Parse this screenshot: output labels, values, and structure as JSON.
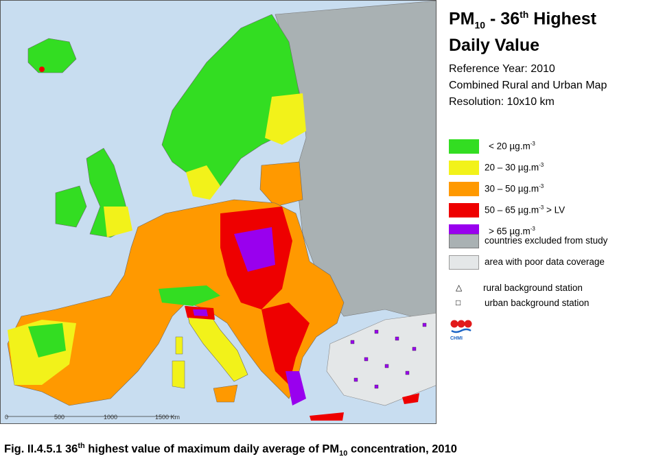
{
  "title": {
    "line1_prefix": "PM",
    "line1_sub": "10",
    "line1_mid": " - 36",
    "line1_sup": "th",
    "line1_suffix": " Highest",
    "line2": "Daily Value"
  },
  "meta": {
    "reference_year": "Reference Year: 2010",
    "map_type": "Combined Rural and Urban Map",
    "resolution": "Resolution: 10x10 km"
  },
  "legend": {
    "items": [
      {
        "label": "<  20  µg.m",
        "sup": "-3",
        "suffix": "",
        "color": "#33dd22"
      },
      {
        "label": "20 – 30  µg.m",
        "sup": "-3",
        "suffix": "",
        "color": "#f2f21a"
      },
      {
        "label": "30 – 50  µg.m",
        "sup": "-3",
        "suffix": "",
        "color": "#ff9900"
      },
      {
        "label": "50 – 65  µg.m",
        "sup": "-3",
        "suffix": "  > LV",
        "color": "#ee0000"
      },
      {
        "label": ">  65  µg.m",
        "sup": "-3",
        "suffix": "",
        "color": "#9900ee"
      }
    ],
    "excluded_label": "countries excluded from study",
    "excluded_color": "#a9b1b3",
    "poor_label": "area with poor data coverage",
    "poor_color": "#e4e7e8",
    "rural_symbol": "△",
    "rural_label": "rural background station",
    "urban_symbol": "□",
    "urban_label": "urban background station"
  },
  "logo_text": "CHMI",
  "scale_labels": [
    "0",
    "500",
    "1000",
    "1500 Km"
  ],
  "caption": {
    "prefix": "Fig. II.4.5.1  36",
    "sup": "th",
    "mid": " highest value of maximum daily average of PM",
    "sub": "10",
    "suffix": " concentration, 2010"
  },
  "colors": {
    "sea": "#c8ddf0",
    "band_lt20": "#33dd22",
    "band_20_30": "#f2f21a",
    "band_30_50": "#ff9900",
    "band_50_65": "#ee0000",
    "band_gt65": "#9900ee",
    "excluded": "#a9b1b3",
    "poor": "#e4e7e8"
  }
}
